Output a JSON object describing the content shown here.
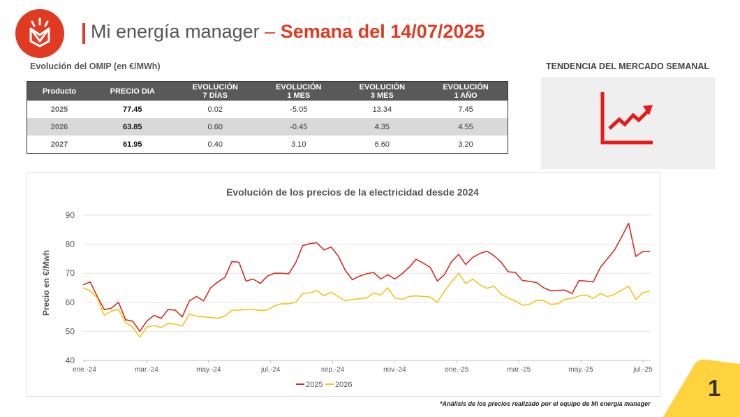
{
  "header": {
    "title_light": "Mi energía manager",
    "title_sep": "–",
    "title_bold": "Semana del 14/07/2025"
  },
  "omip": {
    "label": "Evolución del OMIP (en €/MWh)",
    "columns": [
      [
        "Producto"
      ],
      [
        "PRECIO DIA"
      ],
      [
        "EVOLUCIÓN",
        "7 DÍAS"
      ],
      [
        "EVOLUCIÓN",
        "1 MES"
      ],
      [
        "EVOLUCIÓN",
        "3 MES"
      ],
      [
        "EVOLUCIÓN",
        "1 AÑO"
      ]
    ],
    "rows": [
      [
        "2025",
        "77.45",
        "0.02",
        "-5.05",
        "13.34",
        "7.45"
      ],
      [
        "2026",
        "63.85",
        "0.60",
        "-0.45",
        "4.35",
        "4.55"
      ],
      [
        "2027",
        "61.95",
        "0.40",
        "3.10",
        "6.60",
        "3.20"
      ]
    ]
  },
  "trend": {
    "label": "TENDENCIA DEL MERCADO SEMANAL",
    "icon": "trend-up-icon",
    "color": "#e8191b"
  },
  "chart_data": {
    "type": "line",
    "title": "Evolución de los precios de la electricidad desde 2024",
    "xlabel": "",
    "ylabel": "Precio en €/Mwh",
    "ylim": [
      40,
      90
    ],
    "yticks": [
      40,
      50,
      60,
      70,
      80,
      90
    ],
    "grid": true,
    "legend_position": "bottom",
    "x_tick_labels": [
      "ene.-24",
      "mar.-24",
      "may.-24",
      "jul.-24",
      "sep.-24",
      "nov.-24",
      "ene.-25",
      "mar.-25",
      "may.-25",
      "jul.-25"
    ],
    "series": [
      {
        "name": "2025",
        "color": "#d62c1f",
        "values": [
          66,
          67,
          62,
          57.5,
          58,
          60,
          54,
          53.5,
          50,
          53.5,
          55.5,
          54.5,
          57.5,
          57.3,
          55,
          60.5,
          62,
          60.5,
          65,
          67,
          68.5,
          74,
          73.8,
          67.3,
          68,
          66.5,
          69,
          70,
          70,
          69.8,
          73.5,
          79.5,
          80.2,
          80.5,
          78,
          79,
          76,
          71,
          67.8,
          69,
          69.8,
          70.3,
          68,
          69.5,
          68,
          69.8,
          72,
          74.8,
          73.5,
          72,
          67.3,
          69.5,
          74,
          76.5,
          73,
          75.5,
          76.8,
          77.6,
          76,
          73.8,
          70.5,
          70.3,
          67.5,
          67.2,
          66.8,
          65,
          64,
          64.1,
          64.2,
          63,
          67.5,
          67.3,
          67,
          72,
          75,
          78,
          82.5,
          87.2,
          75.8,
          77.5,
          77.45
        ]
      },
      {
        "name": "2026",
        "color": "#f2c418",
        "values": [
          65,
          64,
          61.5,
          55.5,
          57,
          57.5,
          53,
          51.5,
          48,
          51.5,
          52,
          51.3,
          52.8,
          52.5,
          51.8,
          56,
          55.2,
          55,
          54.8,
          54.5,
          55.2,
          57.3,
          57.3,
          57.5,
          57.5,
          57.2,
          57.3,
          58.8,
          59.5,
          59.5,
          60,
          63,
          63.2,
          64,
          62.2,
          63.5,
          62,
          60.5,
          61,
          61.2,
          61.5,
          63.2,
          62.5,
          65,
          61.5,
          61,
          62,
          62.2,
          62,
          61.8,
          60,
          63.8,
          67,
          70,
          66.5,
          68,
          66,
          64.8,
          65.5,
          62.8,
          61.5,
          60.5,
          59,
          59.3,
          60.7,
          60.6,
          59.3,
          59.5,
          61,
          61.4,
          62.2,
          62.5,
          61.4,
          63,
          62,
          62.8,
          64.2,
          65.5,
          61,
          63.3,
          63.85
        ]
      }
    ]
  },
  "footnote": "*Análisis de los precios realizado por el equipo de Mi energía manager",
  "page_number": "1",
  "colors": {
    "brand_red": "#e03a22",
    "table_header": "#595959",
    "corner_yellow": "#ffd33d"
  }
}
